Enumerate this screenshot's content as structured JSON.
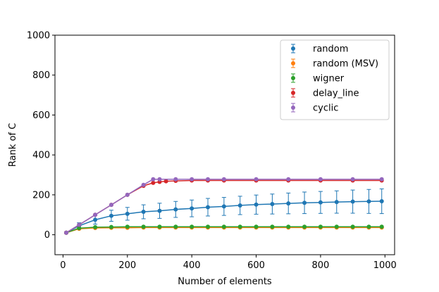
{
  "chart_data": {
    "type": "scatter",
    "title": "",
    "xlabel": "Number of elements",
    "ylabel": "Rank of C",
    "xlim": [
      -25,
      1030
    ],
    "ylim": [
      -100,
      1000
    ],
    "xticks": [
      0,
      200,
      400,
      600,
      800,
      1000
    ],
    "yticks": [
      0,
      200,
      400,
      600,
      800,
      1000
    ],
    "legend_position": "top-right",
    "series": [
      {
        "name": "random",
        "color": "#1f77b4",
        "x": [
          10,
          50,
          100,
          150,
          200,
          250,
          300,
          350,
          400,
          450,
          500,
          550,
          600,
          650,
          700,
          750,
          800,
          850,
          900,
          950,
          990
        ],
        "y": [
          10,
          45,
          75,
          95,
          105,
          115,
          120,
          127,
          132,
          138,
          142,
          147,
          151,
          154,
          157,
          160,
          162,
          164,
          166,
          167,
          168
        ],
        "yerr": [
          2,
          15,
          22,
          28,
          32,
          35,
          38,
          40,
          42,
          44,
          45,
          46,
          48,
          50,
          52,
          54,
          55,
          56,
          58,
          60,
          62
        ]
      },
      {
        "name": "random (MSV)",
        "color": "#ff7f0e",
        "x": [
          10,
          50,
          100,
          150,
          200,
          250,
          300,
          350,
          400,
          450,
          500,
          550,
          600,
          650,
          700,
          750,
          800,
          850,
          900,
          950,
          990
        ],
        "y": [
          10,
          30,
          34,
          35,
          35,
          36,
          36,
          36,
          36,
          36,
          36,
          36,
          36,
          36,
          36,
          36,
          36,
          36,
          36,
          36,
          36
        ],
        "yerr": [
          1,
          2,
          2,
          2,
          2,
          2,
          2,
          2,
          2,
          2,
          2,
          2,
          2,
          2,
          2,
          2,
          2,
          2,
          2,
          2,
          2
        ]
      },
      {
        "name": "wigner",
        "color": "#2ca02c",
        "x": [
          10,
          50,
          100,
          150,
          200,
          250,
          300,
          350,
          400,
          450,
          500,
          550,
          600,
          650,
          700,
          750,
          800,
          850,
          900,
          950,
          990
        ],
        "y": [
          10,
          33,
          38,
          39,
          40,
          40,
          40,
          40,
          40,
          40,
          40,
          40,
          40,
          40,
          40,
          40,
          40,
          40,
          40,
          40,
          40
        ],
        "yerr": [
          0,
          0,
          0,
          0,
          0,
          0,
          0,
          0,
          0,
          0,
          0,
          0,
          0,
          0,
          0,
          0,
          0,
          0,
          0,
          0,
          0
        ]
      },
      {
        "name": "delay_line",
        "color": "#d62728",
        "x": [
          10,
          50,
          100,
          150,
          200,
          250,
          280,
          300,
          320,
          350,
          400,
          450,
          500,
          600,
          700,
          800,
          900,
          990
        ],
        "y": [
          10,
          50,
          100,
          150,
          200,
          245,
          260,
          265,
          268,
          270,
          272,
          272,
          272,
          272,
          272,
          272,
          272,
          272
        ],
        "yerr": [
          0,
          0,
          0,
          0,
          0,
          0,
          0,
          0,
          0,
          0,
          0,
          0,
          0,
          0,
          0,
          0,
          0,
          0
        ]
      },
      {
        "name": "cyclic",
        "color": "#9467bd",
        "x": [
          10,
          50,
          100,
          150,
          200,
          250,
          280,
          300,
          350,
          400,
          450,
          500,
          600,
          700,
          800,
          900,
          990
        ],
        "y": [
          10,
          50,
          100,
          150,
          200,
          250,
          278,
          278,
          278,
          278,
          278,
          278,
          278,
          278,
          278,
          278,
          278
        ],
        "yerr": [
          0,
          0,
          0,
          0,
          0,
          0,
          0,
          0,
          0,
          0,
          0,
          0,
          0,
          0,
          0,
          0,
          0
        ]
      }
    ]
  }
}
